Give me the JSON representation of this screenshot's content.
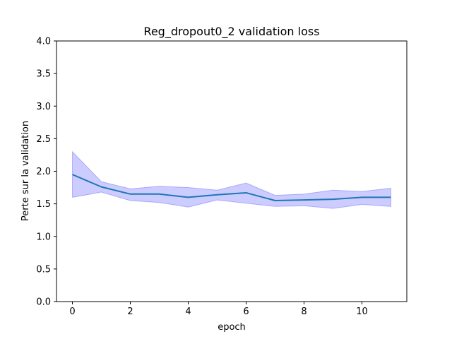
{
  "chart_data": {
    "type": "line",
    "title": "Reg_dropout0_2 validation loss",
    "xlabel": "epoch",
    "ylabel": "Perte sur la validation",
    "xlim": [
      -0.55,
      11.55
    ],
    "ylim": [
      0,
      4
    ],
    "xticks": [
      0,
      2,
      4,
      6,
      8,
      10
    ],
    "xtick_labels": [
      "0",
      "2",
      "4",
      "6",
      "8",
      "10"
    ],
    "yticks": [
      0,
      0.5,
      1,
      1.5,
      2,
      2.5,
      3,
      3.5,
      4
    ],
    "ytick_labels": [
      "0.0",
      "0.5",
      "1.0",
      "1.5",
      "2.0",
      "2.5",
      "3.0",
      "3.5",
      "4.0"
    ],
    "grid": false,
    "legend": "none",
    "series": [
      {
        "x": [
          0,
          1,
          2,
          3,
          4,
          5,
          6,
          7,
          8,
          9,
          10,
          11
        ],
        "values": [
          1.95,
          1.76,
          1.65,
          1.65,
          1.6,
          1.64,
          1.67,
          1.55,
          1.56,
          1.57,
          1.6,
          1.6
        ],
        "lower": [
          1.6,
          1.68,
          1.55,
          1.52,
          1.45,
          1.56,
          1.51,
          1.46,
          1.47,
          1.43,
          1.49,
          1.46
        ],
        "upper": [
          2.3,
          1.84,
          1.73,
          1.77,
          1.75,
          1.71,
          1.82,
          1.63,
          1.65,
          1.71,
          1.69,
          1.74
        ],
        "color": "#1f77b4",
        "band_color": "#0000ff"
      }
    ]
  }
}
